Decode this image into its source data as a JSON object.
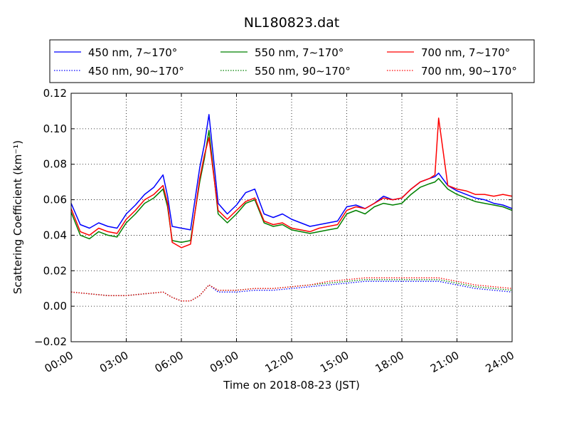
{
  "chart_data": {
    "type": "line",
    "title": "NL180823.dat",
    "xlabel": "Time on 2018-08-23 (JST)",
    "ylabel": "Scattering Coefficient (km⁻¹)",
    "x_unit": "hours",
    "xlim": [
      0,
      24
    ],
    "ylim": [
      -0.02,
      0.12
    ],
    "x_ticks": [
      0,
      3,
      6,
      9,
      12,
      15,
      18,
      21,
      24
    ],
    "x_tick_labels": [
      "00:00",
      "03:00",
      "06:00",
      "09:00",
      "12:00",
      "15:00",
      "18:00",
      "21:00",
      "24:00"
    ],
    "y_ticks": [
      -0.02,
      0.0,
      0.02,
      0.04,
      0.06,
      0.08,
      0.1,
      0.12
    ],
    "y_tick_labels": [
      "−0.02",
      "0.00",
      "0.02",
      "0.04",
      "0.06",
      "0.08",
      "0.10",
      "0.12"
    ],
    "grid": true,
    "legend_position": "top",
    "legend_columns": 3,
    "series": [
      {
        "name": "450 nm, 7∼170°",
        "color": "#0000ff",
        "style": "solid",
        "x": [
          0,
          0.5,
          1,
          1.5,
          2,
          2.5,
          3,
          3.5,
          4,
          4.5,
          5,
          5.25,
          5.5,
          6,
          6.5,
          7,
          7.25,
          7.5,
          8,
          8.5,
          9,
          9.5,
          10,
          10.5,
          11,
          11.5,
          12,
          12.5,
          13,
          13.5,
          14,
          14.5,
          15,
          15.5,
          16,
          16.5,
          17,
          17.5,
          18,
          18.5,
          19,
          19.5,
          19.8,
          20,
          20.5,
          21,
          21.5,
          22,
          22.5,
          23,
          23.5,
          24
        ],
        "y": [
          0.058,
          0.046,
          0.044,
          0.047,
          0.045,
          0.044,
          0.052,
          0.057,
          0.063,
          0.067,
          0.074,
          0.062,
          0.045,
          0.044,
          0.043,
          0.078,
          0.091,
          0.108,
          0.058,
          0.052,
          0.057,
          0.064,
          0.066,
          0.052,
          0.05,
          0.052,
          0.049,
          0.047,
          0.045,
          0.046,
          0.047,
          0.048,
          0.056,
          0.057,
          0.055,
          0.058,
          0.062,
          0.06,
          0.061,
          0.066,
          0.07,
          0.072,
          0.073,
          0.075,
          0.068,
          0.065,
          0.063,
          0.061,
          0.06,
          0.058,
          0.057,
          0.055
        ]
      },
      {
        "name": "550 nm, 7∼170°",
        "color": "#008000",
        "style": "solid",
        "x": [
          0,
          0.5,
          1,
          1.5,
          2,
          2.5,
          3,
          3.5,
          4,
          4.5,
          5,
          5.25,
          5.5,
          6,
          6.5,
          7,
          7.25,
          7.5,
          8,
          8.5,
          9,
          9.5,
          10,
          10.5,
          11,
          11.5,
          12,
          12.5,
          13,
          13.5,
          14,
          14.5,
          15,
          15.5,
          16,
          16.5,
          17,
          17.5,
          18,
          18.5,
          19,
          19.5,
          19.8,
          20,
          20.5,
          21,
          21.5,
          22,
          22.5,
          23,
          23.5,
          24
        ],
        "y": [
          0.053,
          0.04,
          0.038,
          0.042,
          0.04,
          0.039,
          0.047,
          0.052,
          0.058,
          0.061,
          0.066,
          0.056,
          0.037,
          0.036,
          0.037,
          0.07,
          0.083,
          0.099,
          0.052,
          0.047,
          0.052,
          0.058,
          0.06,
          0.047,
          0.045,
          0.046,
          0.043,
          0.042,
          0.041,
          0.042,
          0.043,
          0.044,
          0.052,
          0.054,
          0.052,
          0.056,
          0.058,
          0.057,
          0.058,
          0.063,
          0.067,
          0.069,
          0.07,
          0.072,
          0.066,
          0.063,
          0.061,
          0.059,
          0.058,
          0.057,
          0.056,
          0.054
        ]
      },
      {
        "name": "700 nm, 7∼170°",
        "color": "#ff0000",
        "style": "solid",
        "x": [
          0,
          0.5,
          1,
          1.5,
          2,
          2.5,
          3,
          3.5,
          4,
          4.5,
          5,
          5.25,
          5.5,
          6,
          6.5,
          7,
          7.25,
          7.5,
          8,
          8.5,
          9,
          9.5,
          10,
          10.5,
          11,
          11.5,
          12,
          12.5,
          13,
          13.5,
          14,
          14.5,
          15,
          15.5,
          16,
          16.5,
          17,
          17.5,
          18,
          18.5,
          19,
          19.5,
          19.8,
          20,
          20.5,
          21,
          21.5,
          22,
          22.5,
          23,
          23.5,
          24
        ],
        "y": [
          0.055,
          0.042,
          0.04,
          0.044,
          0.042,
          0.041,
          0.049,
          0.054,
          0.06,
          0.063,
          0.068,
          0.058,
          0.036,
          0.033,
          0.035,
          0.072,
          0.085,
          0.095,
          0.054,
          0.049,
          0.054,
          0.059,
          0.061,
          0.048,
          0.046,
          0.047,
          0.044,
          0.043,
          0.042,
          0.044,
          0.045,
          0.046,
          0.054,
          0.056,
          0.055,
          0.058,
          0.061,
          0.06,
          0.061,
          0.066,
          0.07,
          0.072,
          0.074,
          0.106,
          0.068,
          0.066,
          0.065,
          0.063,
          0.063,
          0.062,
          0.063,
          0.062
        ]
      },
      {
        "name": "450 nm, 90∼170°",
        "color": "#0000ff",
        "style": "dotted",
        "x": [
          0,
          1,
          2,
          3,
          4,
          5,
          5.5,
          6,
          6.5,
          7,
          7.5,
          8,
          9,
          10,
          11,
          12,
          13,
          14,
          15,
          16,
          17,
          18,
          19,
          20,
          21,
          22,
          23,
          24
        ],
        "y": [
          0.008,
          0.007,
          0.006,
          0.006,
          0.007,
          0.008,
          0.005,
          0.003,
          0.003,
          0.006,
          0.012,
          0.008,
          0.008,
          0.009,
          0.009,
          0.01,
          0.011,
          0.012,
          0.013,
          0.014,
          0.014,
          0.014,
          0.014,
          0.014,
          0.012,
          0.01,
          0.009,
          0.008
        ]
      },
      {
        "name": "550 nm, 90∼170°",
        "color": "#008000",
        "style": "dotted",
        "x": [
          0,
          1,
          2,
          3,
          4,
          5,
          5.5,
          6,
          6.5,
          7,
          7.5,
          8,
          9,
          10,
          11,
          12,
          13,
          14,
          15,
          16,
          17,
          18,
          19,
          20,
          21,
          22,
          23,
          24
        ],
        "y": [
          0.008,
          0.007,
          0.006,
          0.006,
          0.007,
          0.008,
          0.005,
          0.003,
          0.003,
          0.006,
          0.012,
          0.009,
          0.009,
          0.01,
          0.01,
          0.011,
          0.012,
          0.013,
          0.014,
          0.015,
          0.015,
          0.015,
          0.015,
          0.015,
          0.013,
          0.011,
          0.01,
          0.009
        ]
      },
      {
        "name": "700 nm, 90∼170°",
        "color": "#ff0000",
        "style": "dotted",
        "x": [
          0,
          1,
          2,
          3,
          4,
          5,
          5.5,
          6,
          6.5,
          7,
          7.5,
          8,
          9,
          10,
          11,
          12,
          13,
          14,
          15,
          16,
          17,
          18,
          19,
          20,
          21,
          22,
          23,
          24
        ],
        "y": [
          0.008,
          0.007,
          0.006,
          0.006,
          0.007,
          0.008,
          0.005,
          0.003,
          0.003,
          0.006,
          0.012,
          0.009,
          0.009,
          0.01,
          0.01,
          0.011,
          0.012,
          0.014,
          0.015,
          0.016,
          0.016,
          0.016,
          0.016,
          0.016,
          0.014,
          0.012,
          0.011,
          0.01
        ]
      }
    ]
  }
}
